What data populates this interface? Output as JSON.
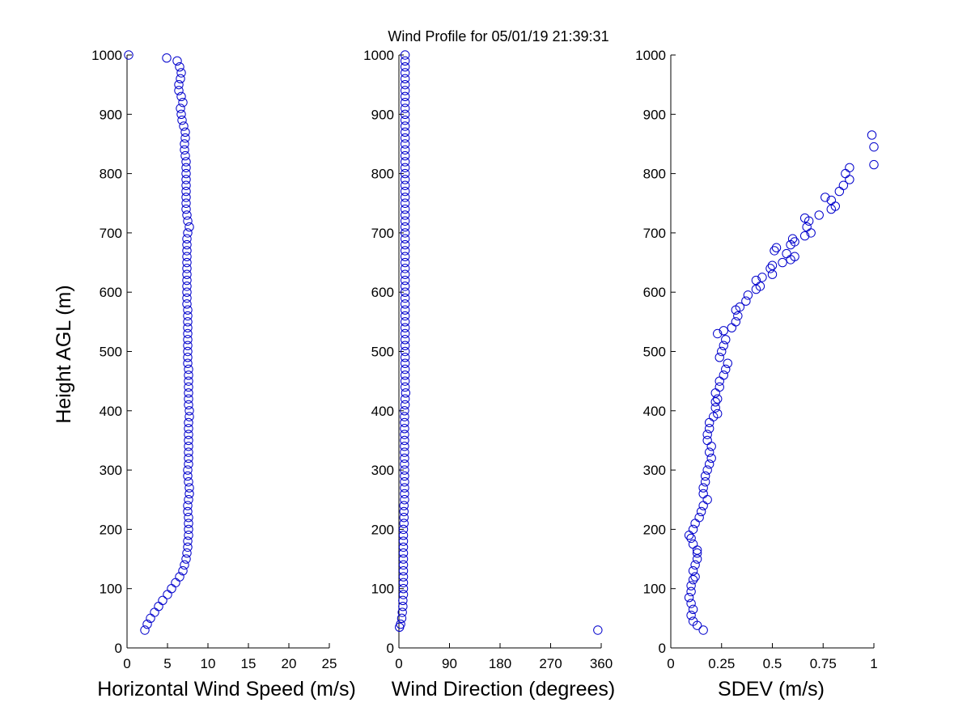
{
  "figure": {
    "title": "Wind Profile for  05/01/19 21:39:31"
  },
  "chart_data": [
    {
      "type": "scatter",
      "panel": "speed",
      "xlabel": "Horizontal Wind Speed (m/s)",
      "ylabel": "Height AGL (m)",
      "xlim": [
        0,
        25
      ],
      "ylim": [
        0,
        1000
      ],
      "xticks": [
        0,
        5,
        10,
        15,
        20,
        25
      ],
      "yticks": [
        0,
        100,
        200,
        300,
        400,
        500,
        600,
        700,
        800,
        900,
        1000
      ],
      "marker": "open-circle",
      "color": "#0000cc",
      "grid": false,
      "points": [
        [
          2.2,
          30
        ],
        [
          2.5,
          40
        ],
        [
          2.9,
          50
        ],
        [
          3.4,
          60
        ],
        [
          3.9,
          70
        ],
        [
          4.4,
          80
        ],
        [
          5.0,
          90
        ],
        [
          5.5,
          100
        ],
        [
          6.0,
          110
        ],
        [
          6.5,
          120
        ],
        [
          6.9,
          130
        ],
        [
          7.1,
          140
        ],
        [
          7.3,
          150
        ],
        [
          7.4,
          160
        ],
        [
          7.5,
          170
        ],
        [
          7.5,
          180
        ],
        [
          7.6,
          190
        ],
        [
          7.6,
          200
        ],
        [
          7.6,
          210
        ],
        [
          7.6,
          220
        ],
        [
          7.5,
          230
        ],
        [
          7.5,
          240
        ],
        [
          7.6,
          250
        ],
        [
          7.7,
          260
        ],
        [
          7.7,
          270
        ],
        [
          7.6,
          280
        ],
        [
          7.5,
          290
        ],
        [
          7.5,
          300
        ],
        [
          7.6,
          310
        ],
        [
          7.6,
          320
        ],
        [
          7.6,
          330
        ],
        [
          7.6,
          340
        ],
        [
          7.6,
          350
        ],
        [
          7.6,
          360
        ],
        [
          7.6,
          370
        ],
        [
          7.6,
          380
        ],
        [
          7.7,
          390
        ],
        [
          7.7,
          400
        ],
        [
          7.6,
          410
        ],
        [
          7.6,
          420
        ],
        [
          7.6,
          430
        ],
        [
          7.6,
          440
        ],
        [
          7.6,
          450
        ],
        [
          7.6,
          460
        ],
        [
          7.6,
          470
        ],
        [
          7.5,
          480
        ],
        [
          7.5,
          490
        ],
        [
          7.5,
          500
        ],
        [
          7.5,
          510
        ],
        [
          7.5,
          520
        ],
        [
          7.5,
          530
        ],
        [
          7.5,
          540
        ],
        [
          7.5,
          550
        ],
        [
          7.5,
          560
        ],
        [
          7.5,
          570
        ],
        [
          7.4,
          580
        ],
        [
          7.4,
          590
        ],
        [
          7.4,
          600
        ],
        [
          7.4,
          610
        ],
        [
          7.4,
          620
        ],
        [
          7.4,
          630
        ],
        [
          7.4,
          640
        ],
        [
          7.4,
          650
        ],
        [
          7.4,
          660
        ],
        [
          7.4,
          670
        ],
        [
          7.4,
          680
        ],
        [
          7.4,
          690
        ],
        [
          7.5,
          700
        ],
        [
          7.7,
          710
        ],
        [
          7.5,
          720
        ],
        [
          7.4,
          730
        ],
        [
          7.3,
          740
        ],
        [
          7.3,
          750
        ],
        [
          7.3,
          760
        ],
        [
          7.3,
          770
        ],
        [
          7.3,
          780
        ],
        [
          7.3,
          790
        ],
        [
          7.3,
          800
        ],
        [
          7.3,
          810
        ],
        [
          7.3,
          820
        ],
        [
          7.2,
          830
        ],
        [
          7.1,
          840
        ],
        [
          7.1,
          850
        ],
        [
          7.2,
          860
        ],
        [
          7.2,
          870
        ],
        [
          7.0,
          880
        ],
        [
          6.8,
          890
        ],
        [
          6.7,
          900
        ],
        [
          6.6,
          910
        ],
        [
          6.9,
          920
        ],
        [
          6.7,
          930
        ],
        [
          6.4,
          940
        ],
        [
          6.4,
          950
        ],
        [
          6.6,
          960
        ],
        [
          6.7,
          970
        ],
        [
          6.5,
          980
        ],
        [
          6.2,
          990
        ],
        [
          4.9,
          995
        ],
        [
          0.2,
          1000
        ]
      ]
    },
    {
      "type": "scatter",
      "panel": "direction",
      "xlabel": "Wind Direction (degrees)",
      "ylabel": "",
      "xlim": [
        0,
        360
      ],
      "ylim": [
        0,
        1000
      ],
      "xticks": [
        0,
        90,
        180,
        270,
        360
      ],
      "yticks": [
        0,
        100,
        200,
        300,
        400,
        500,
        600,
        700,
        800,
        900,
        1000
      ],
      "marker": "open-circle",
      "color": "#0000cc",
      "grid": false,
      "points": [
        [
          354,
          30
        ],
        [
          1,
          35
        ],
        [
          3,
          40
        ],
        [
          5,
          50
        ],
        [
          6,
          60
        ],
        [
          7,
          70
        ],
        [
          7,
          80
        ],
        [
          8,
          90
        ],
        [
          8,
          100
        ],
        [
          8,
          110
        ],
        [
          8,
          120
        ],
        [
          8,
          130
        ],
        [
          8,
          140
        ],
        [
          8,
          150
        ],
        [
          8,
          160
        ],
        [
          8,
          170
        ],
        [
          8,
          180
        ],
        [
          8,
          190
        ],
        [
          8,
          200
        ],
        [
          9,
          210
        ],
        [
          9,
          220
        ],
        [
          9,
          230
        ],
        [
          9,
          240
        ],
        [
          10,
          250
        ],
        [
          10,
          260
        ],
        [
          10,
          270
        ],
        [
          10,
          280
        ],
        [
          10,
          290
        ],
        [
          10,
          300
        ],
        [
          10,
          310
        ],
        [
          10,
          320
        ],
        [
          10,
          330
        ],
        [
          10,
          340
        ],
        [
          10,
          350
        ],
        [
          10,
          360
        ],
        [
          10,
          370
        ],
        [
          10,
          380
        ],
        [
          10,
          390
        ],
        [
          10,
          400
        ],
        [
          11,
          410
        ],
        [
          11,
          420
        ],
        [
          12,
          430
        ],
        [
          11,
          440
        ],
        [
          11,
          450
        ],
        [
          11,
          460
        ],
        [
          11,
          470
        ],
        [
          11,
          480
        ],
        [
          11,
          490
        ],
        [
          11,
          500
        ],
        [
          11,
          510
        ],
        [
          11,
          520
        ],
        [
          11,
          530
        ],
        [
          11,
          540
        ],
        [
          11,
          550
        ],
        [
          11,
          560
        ],
        [
          11,
          570
        ],
        [
          11,
          580
        ],
        [
          11,
          590
        ],
        [
          11,
          600
        ],
        [
          11,
          610
        ],
        [
          11,
          620
        ],
        [
          11,
          630
        ],
        [
          11,
          640
        ],
        [
          11,
          650
        ],
        [
          11,
          660
        ],
        [
          11,
          670
        ],
        [
          11,
          680
        ],
        [
          11,
          690
        ],
        [
          11,
          700
        ],
        [
          11,
          710
        ],
        [
          11,
          720
        ],
        [
          11,
          730
        ],
        [
          11,
          740
        ],
        [
          11,
          750
        ],
        [
          11,
          760
        ],
        [
          11,
          770
        ],
        [
          11,
          780
        ],
        [
          11,
          790
        ],
        [
          11,
          800
        ],
        [
          11,
          810
        ],
        [
          11,
          820
        ],
        [
          11,
          830
        ],
        [
          11,
          840
        ],
        [
          11,
          850
        ],
        [
          11,
          860
        ],
        [
          11,
          870
        ],
        [
          11,
          880
        ],
        [
          11,
          890
        ],
        [
          11,
          900
        ],
        [
          11,
          910
        ],
        [
          11,
          920
        ],
        [
          11,
          930
        ],
        [
          11,
          940
        ],
        [
          11,
          950
        ],
        [
          11,
          960
        ],
        [
          11,
          970
        ],
        [
          11,
          980
        ],
        [
          11,
          990
        ],
        [
          11,
          1000
        ]
      ]
    },
    {
      "type": "scatter",
      "panel": "sdev",
      "xlabel": "SDEV  (m/s)",
      "ylabel": "",
      "xlim": [
        0,
        1
      ],
      "ylim": [
        0,
        1000
      ],
      "xticks": [
        0,
        0.25,
        0.5,
        0.75,
        1
      ],
      "xticklabels": [
        "0",
        "0.25",
        "0.5",
        "0.75",
        "1"
      ],
      "yticks": [
        0,
        100,
        200,
        300,
        400,
        500,
        600,
        700,
        800,
        900,
        1000
      ],
      "marker": "open-circle",
      "color": "#0000cc",
      "grid": false,
      "points": [
        [
          0.16,
          30
        ],
        [
          0.13,
          38
        ],
        [
          0.11,
          45
        ],
        [
          0.1,
          55
        ],
        [
          0.11,
          65
        ],
        [
          0.1,
          75
        ],
        [
          0.09,
          85
        ],
        [
          0.1,
          95
        ],
        [
          0.1,
          105
        ],
        [
          0.11,
          115
        ],
        [
          0.12,
          120
        ],
        [
          0.11,
          130
        ],
        [
          0.12,
          140
        ],
        [
          0.13,
          150
        ],
        [
          0.13,
          160
        ],
        [
          0.13,
          165
        ],
        [
          0.11,
          175
        ],
        [
          0.1,
          185
        ],
        [
          0.09,
          190
        ],
        [
          0.11,
          200
        ],
        [
          0.12,
          210
        ],
        [
          0.14,
          220
        ],
        [
          0.15,
          230
        ],
        [
          0.16,
          240
        ],
        [
          0.18,
          250
        ],
        [
          0.16,
          260
        ],
        [
          0.16,
          270
        ],
        [
          0.17,
          280
        ],
        [
          0.17,
          290
        ],
        [
          0.18,
          300
        ],
        [
          0.19,
          310
        ],
        [
          0.2,
          320
        ],
        [
          0.19,
          330
        ],
        [
          0.2,
          340
        ],
        [
          0.18,
          350
        ],
        [
          0.18,
          360
        ],
        [
          0.19,
          370
        ],
        [
          0.19,
          380
        ],
        [
          0.21,
          390
        ],
        [
          0.23,
          395
        ],
        [
          0.22,
          405
        ],
        [
          0.22,
          415
        ],
        [
          0.23,
          420
        ],
        [
          0.22,
          430
        ],
        [
          0.24,
          440
        ],
        [
          0.24,
          450
        ],
        [
          0.26,
          460
        ],
        [
          0.27,
          470
        ],
        [
          0.28,
          480
        ],
        [
          0.24,
          490
        ],
        [
          0.25,
          500
        ],
        [
          0.26,
          510
        ],
        [
          0.27,
          520
        ],
        [
          0.23,
          530
        ],
        [
          0.26,
          535
        ],
        [
          0.3,
          540
        ],
        [
          0.32,
          550
        ],
        [
          0.33,
          560
        ],
        [
          0.32,
          570
        ],
        [
          0.34,
          575
        ],
        [
          0.37,
          585
        ],
        [
          0.38,
          595
        ],
        [
          0.42,
          605
        ],
        [
          0.44,
          610
        ],
        [
          0.42,
          620
        ],
        [
          0.45,
          625
        ],
        [
          0.5,
          630
        ],
        [
          0.49,
          640
        ],
        [
          0.5,
          645
        ],
        [
          0.55,
          650
        ],
        [
          0.59,
          655
        ],
        [
          0.61,
          660
        ],
        [
          0.57,
          665
        ],
        [
          0.51,
          670
        ],
        [
          0.52,
          675
        ],
        [
          0.59,
          680
        ],
        [
          0.61,
          685
        ],
        [
          0.6,
          690
        ],
        [
          0.66,
          695
        ],
        [
          0.69,
          700
        ],
        [
          0.67,
          710
        ],
        [
          0.68,
          720
        ],
        [
          0.66,
          725
        ],
        [
          0.73,
          730
        ],
        [
          0.79,
          740
        ],
        [
          0.81,
          745
        ],
        [
          0.79,
          755
        ],
        [
          0.76,
          760
        ],
        [
          0.83,
          770
        ],
        [
          0.85,
          780
        ],
        [
          0.88,
          790
        ],
        [
          0.86,
          800
        ],
        [
          0.88,
          810
        ],
        [
          1.0,
          815
        ],
        [
          1.0,
          845
        ],
        [
          0.99,
          865
        ]
      ]
    }
  ]
}
